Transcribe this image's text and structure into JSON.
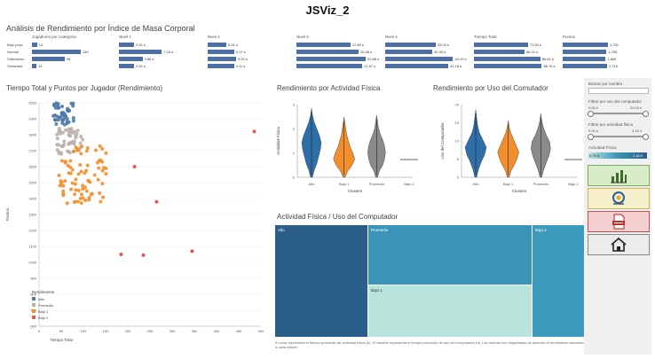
{
  "app": {
    "title": "JSViz_2"
  },
  "header": {
    "subtitle": "Análisis de Rendimiento por Índice de Masa Corporal"
  },
  "summary": {
    "category_header": "Jugadores por Categoría",
    "categories": [
      {
        "label": "Bajo peso",
        "count": "14",
        "frac": 0.1
      },
      {
        "label": "Normal",
        "count": "140",
        "frac": 1.0
      },
      {
        "label": "Sobrepeso",
        "count": "94",
        "frac": 0.67
      },
      {
        "label": "Obesidad",
        "count": "13",
        "frac": 0.09
      }
    ],
    "columns": [
      {
        "header": "Nivel 1",
        "values": [
          {
            "t": "2.51 s",
            "f": 0.22
          },
          {
            "t": "7.10 s",
            "f": 0.62
          },
          {
            "t": "3.86 s",
            "f": 0.34
          },
          {
            "t": "2.51 s",
            "f": 0.22
          }
        ]
      },
      {
        "header": "Nivel 2",
        "values": [
          {
            "t": "6.61 s",
            "f": 0.27
          },
          {
            "t": "9.17 s",
            "f": 0.38
          },
          {
            "t": "9.92 s",
            "f": 0.41
          },
          {
            "t": "9.11 s",
            "f": 0.38
          }
        ]
      },
      {
        "header": "Nivel 3",
        "values": [
          {
            "t": "17.80 s",
            "f": 0.78
          },
          {
            "t": "20.46 s",
            "f": 0.9
          },
          {
            "t": "22.68 s",
            "f": 1.0
          },
          {
            "t": "21.67 s",
            "f": 0.95
          }
        ]
      },
      {
        "header": "Nivel 4",
        "values": [
          {
            "t": "33.02 s",
            "f": 0.73
          },
          {
            "t": "30.40 s",
            "f": 0.68
          },
          {
            "t": "44.19 s",
            "f": 0.98
          },
          {
            "t": "41.18 s",
            "f": 0.91
          }
        ]
      },
      {
        "header": "Tiempo Total",
        "values": [
          {
            "t": "71.00 s",
            "f": 0.78
          },
          {
            "t": "66.01 s",
            "f": 0.73
          },
          {
            "t": "86.61 s",
            "f": 0.96
          },
          {
            "t": "88.76 s",
            "f": 0.98
          }
        ]
      },
      {
        "header": "Puntos",
        "values": [
          {
            "t": "1,751",
            "f": 0.98
          },
          {
            "t": "1,705",
            "f": 0.95
          },
          {
            "t": "1,669",
            "f": 0.93
          },
          {
            "t": "1,713",
            "f": 0.96
          }
        ]
      }
    ]
  },
  "scatter": {
    "title": "Tiempo Total y Puntos por Jugador (Rendimiento)",
    "xlabel": "Tiempo Total",
    "ylabel": "Puntos",
    "x_ticks": [
      "0",
      "50",
      "100",
      "150",
      "200",
      "250",
      "300",
      "350",
      "400",
      "450",
      "500"
    ],
    "y_ticks": [
      "2000",
      "1900",
      "1800",
      "1700",
      "1600",
      "1500",
      "1400",
      "1300",
      "1200",
      "1100",
      "1000",
      "900",
      "800",
      "700",
      "600"
    ]
  },
  "legend": {
    "title": "Rendimiento",
    "items": [
      {
        "label": "Alto",
        "color": "#4e79a7"
      },
      {
        "label": "Promedio",
        "color": "#b8b0ac"
      },
      {
        "label": "Bajo 1",
        "color": "#f28e2b"
      },
      {
        "label": "Bajo 2",
        "color": "#e15759"
      }
    ]
  },
  "violin1": {
    "title": "Rendimiento por Actividad Física",
    "ylabel": "Actividad Física",
    "xlabel": "Clusters",
    "y_ticks": [
      "3",
      "2",
      "1",
      "0"
    ],
    "categories": [
      "Alto",
      "Bajo 1",
      "Promedio",
      "Bajo 2"
    ]
  },
  "violin2": {
    "title": "Rendimiento por Uso del Comutador",
    "ylabel": "Uso del Computador",
    "xlabel": "Clusters",
    "y_ticks": [
      "20",
      "15",
      "10",
      "5",
      "0"
    ],
    "categories": [
      "Alto",
      "Bajo 1",
      "Promedio",
      "Bajo 2"
    ]
  },
  "treemap": {
    "title": "Actividad Física / Uso del Computador",
    "cells": [
      {
        "label": "Alto",
        "color": "#2b5f8a"
      },
      {
        "label": "Promedio",
        "color": "#3a94b8"
      },
      {
        "label": "Bajo 1",
        "color": "#b9e4dc"
      },
      {
        "label": "Bajo 2",
        "color": "#3f9bbd"
      }
    ],
    "footnote": "El color representa el tiempo promedio de actividad física (h). El tamaño representa el tiempo promedio de uso del computador (h). Las marcas son etiquetadas de acuerdo al rendimiento asociado a cada clúster."
  },
  "filters": {
    "search_label": "Buscar por nombre",
    "search_value": "",
    "computer_label": "Filtrar por uso del computador",
    "computer_min": "0.00 h",
    "computer_max": "20.00 h",
    "activity_label": "Filtrar por actividad física",
    "activity_min": "0.00 h",
    "activity_max": "3.18 h",
    "color_label": "Actividad Física",
    "color_min": "0.73 h",
    "color_max": "1.18 h"
  },
  "nav": {
    "buttons": [
      {
        "icon": "bar-chart-icon",
        "bg": "#d9ecc8",
        "border": "#7fae5a"
      },
      {
        "icon": "settings-search-icon",
        "bg": "#f7f0cc",
        "border": "#c9b45a"
      },
      {
        "icon": "pdf-icon",
        "bg": "#f5d0d0",
        "border": "#c05050"
      },
      {
        "icon": "home-icon",
        "bg": "#ececec",
        "border": "#888888"
      }
    ]
  }
}
